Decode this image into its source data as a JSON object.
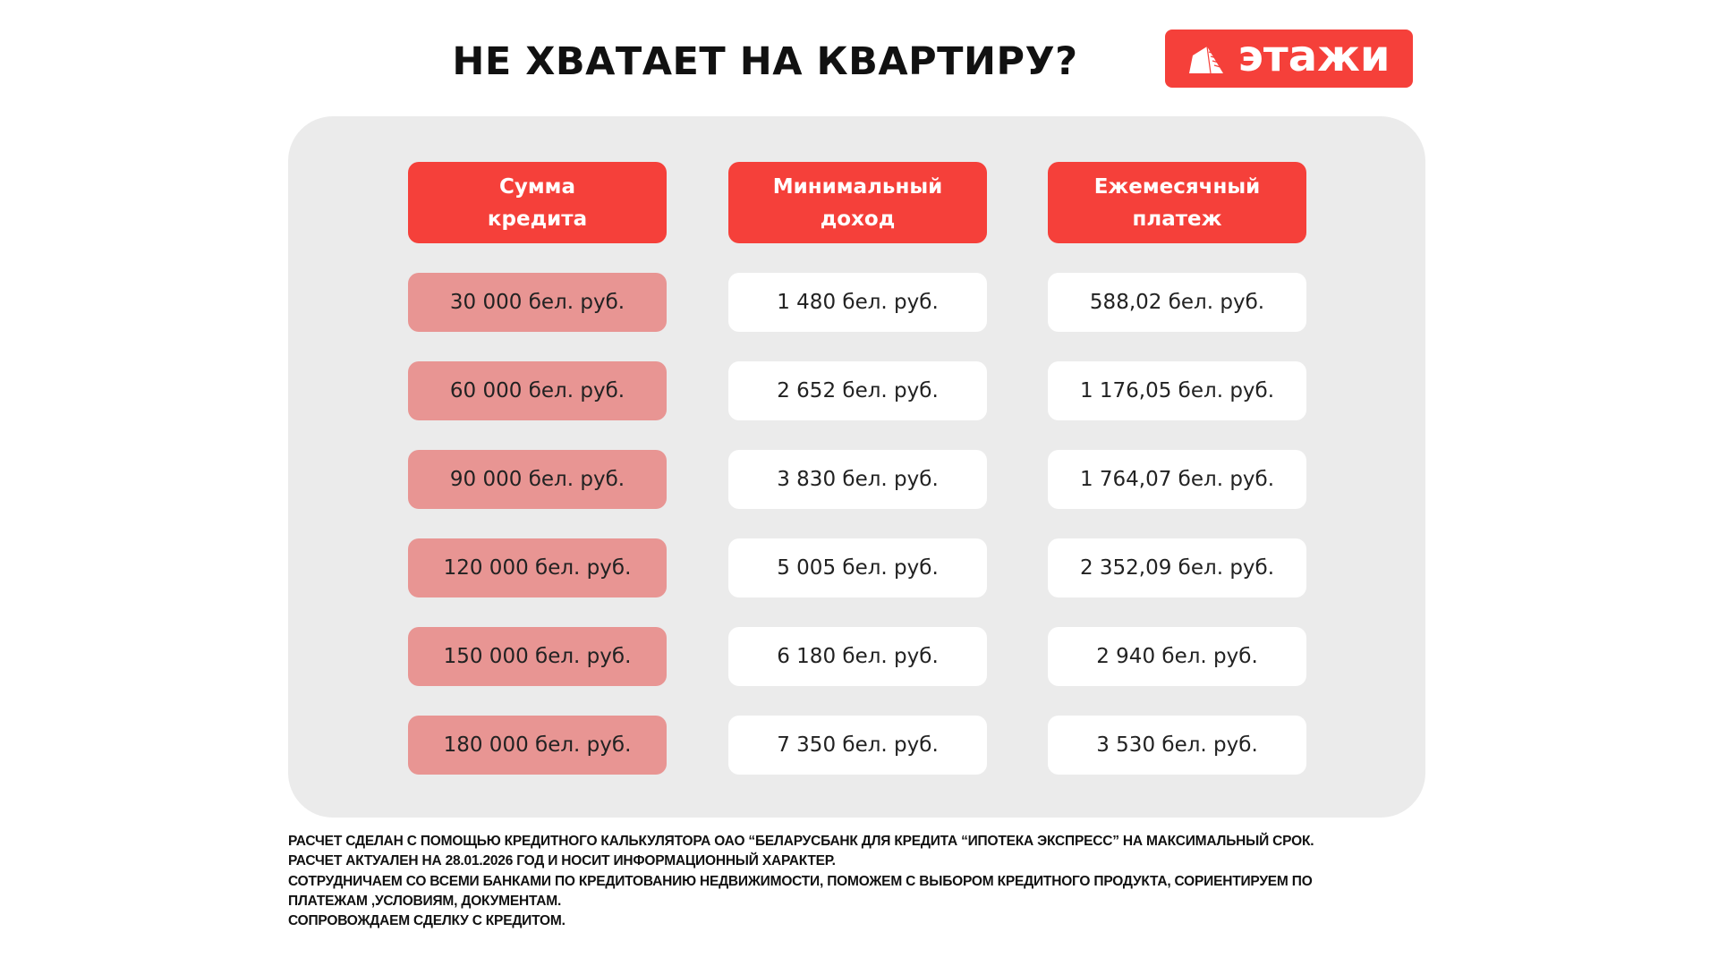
{
  "title": "НЕ ХВАТАЕТ НА КВАРТИРУ?",
  "logo": {
    "text": "этажи",
    "icon": "building-icon",
    "color": "#f5403a"
  },
  "colors": {
    "header": "#f5403a",
    "loan_cell": "#e89593",
    "panel": "#ebebeb"
  },
  "table": {
    "headers": [
      "Сумма\nкредита",
      "Минимальный\nдоход",
      "Ежемесячный\nплатеж"
    ],
    "rows": [
      [
        "30 000 бел. руб.",
        "1 480 бел. руб.",
        "588,02 бел. руб."
      ],
      [
        "60 000 бел. руб.",
        "2 652 бел. руб.",
        "1 176,05 бел. руб."
      ],
      [
        "90 000 бел. руб.",
        "3 830 бел. руб.",
        "1 764,07 бел. руб."
      ],
      [
        "120 000 бел. руб.",
        "5 005 бел. руб.",
        "2 352,09 бел. руб."
      ],
      [
        "150 000 бел. руб.",
        "6 180 бел. руб.",
        "2 940 бел. руб."
      ],
      [
        "180 000 бел. руб.",
        "7 350 бел. руб.",
        "3 530 бел. руб."
      ]
    ]
  },
  "footer": [
    "РАСЧЕТ СДЕЛАН С ПОМОЩЬЮ КРЕДИТНОГО КАЛЬКУЛЯТОРА ОАО “БЕЛАРУСБАНК ДЛЯ КРЕДИТА “ИПОТЕКА ЭКСПРЕСС” НА МАКСИМАЛЬНЫЙ СРОК.",
    "РАСЧЕТ АКТУАЛЕН НА 28.01.2026 ГОД И НОСИТ ИНФОРМАЦИОННЫЙ ХАРАКТЕР.",
    "СОТРУДНИЧАЕМ СО ВСЕМИ БАНКАМИ ПО КРЕДИТОВАНИЮ НЕДВИЖИМОСТИ, ПОМОЖЕМ С ВЫБОРОМ КРЕДИТНОГО ПРОДУКТА, СОРИЕНТИРУЕМ ПО",
    "ПЛАТЕЖАМ ,УСЛОВИЯМ, ДОКУМЕНТАМ.",
    "СОПРОВОЖДАЕМ СДЕЛКУ С КРЕДИТОМ."
  ]
}
